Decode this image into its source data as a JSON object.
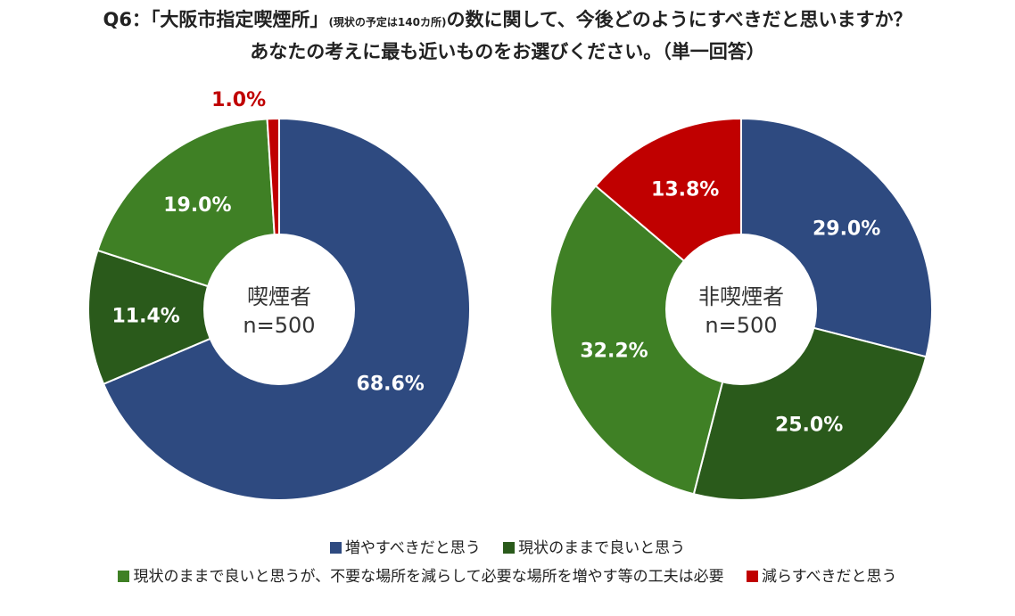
{
  "title": {
    "line1_prefix": "Q6：「大阪市指定喫煙所」",
    "line1_note": "(現状の予定は140カ所)",
    "line1_suffix": "の数に関して、今後どのようにすべきだと思いますか？",
    "line2": "あなたの考えに最も近いものをお選びください。（単一回答）"
  },
  "chart_data": [
    {
      "type": "pie",
      "variant": "donut",
      "center_label": [
        "喫煙者",
        "n=500"
      ],
      "categories": [
        "増やすべきだと思う",
        "現状のままで良いと思う",
        "現状のままで良いと思うが、不要な場所を減らして必要な場所を増やす等の工夫は必要",
        "減らすべきだと思う"
      ],
      "values": [
        68.6,
        11.4,
        19.0,
        1.0
      ],
      "labels": [
        "68.6%",
        "11.4%",
        "19.0%",
        "1.0%"
      ]
    },
    {
      "type": "pie",
      "variant": "donut",
      "center_label": [
        "非喫煙者",
        "n=500"
      ],
      "categories": [
        "増やすべきだと思う",
        "現状のままで良いと思う",
        "現状のままで良いと思うが、不要な場所を減らして必要な場所を増やす等の工夫は必要",
        "減らすべきだと思う"
      ],
      "values": [
        29.0,
        25.0,
        32.2,
        13.8
      ],
      "labels": [
        "29.0%",
        "25.0%",
        "32.2%",
        "13.8%"
      ]
    }
  ],
  "colors": [
    "#2e4a80",
    "#2a5a1b",
    "#3f8025",
    "#c00000"
  ],
  "legend": {
    "items": [
      {
        "label": "増やすべきだと思う",
        "color": "#2e4a80"
      },
      {
        "label": "現状のままで良いと思う",
        "color": "#2a5a1b"
      },
      {
        "label": "現状のままで良いと思うが、不要な場所を減らして必要な場所を増やす等の工夫は必要",
        "color": "#3f8025"
      },
      {
        "label": "減らすべきだと思う",
        "color": "#c00000"
      }
    ]
  }
}
